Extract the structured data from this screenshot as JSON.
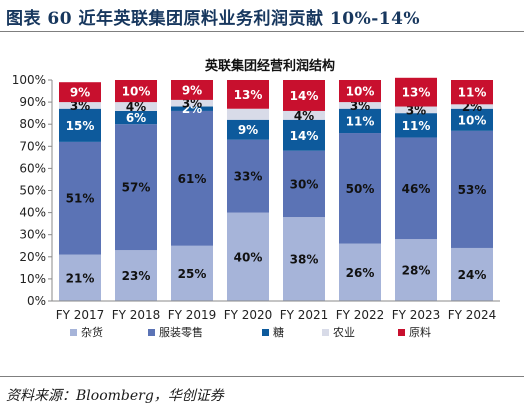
{
  "page": {
    "title": "图表 60    近年英联集团原料业务利润贡献 10%-14%",
    "source": "资料来源：Bloomberg，华创证券"
  },
  "chart_data": {
    "type": "bar",
    "stacked": true,
    "title": "英联集团经营利润结构",
    "categories": [
      "FY 2017",
      "FY 2018",
      "FY 2019",
      "FY 2020",
      "FY 2021",
      "FY 2022",
      "FY 2023",
      "FY 2024"
    ],
    "ylim": [
      0,
      100
    ],
    "yticks": [
      "0%",
      "10%",
      "20%",
      "30%",
      "40%",
      "50%",
      "60%",
      "70%",
      "80%",
      "90%",
      "100%"
    ],
    "legend_position": "bottom",
    "grid": false,
    "series": [
      {
        "name": "杂货",
        "color": "#a6b4d9",
        "label_color": "#111111",
        "values": [
          21,
          23,
          25,
          40,
          38,
          26,
          28,
          24
        ],
        "labels": [
          "21%",
          "23%",
          "25%",
          "40%",
          "38%",
          "26%",
          "28%",
          "24%"
        ]
      },
      {
        "name": "服装零售",
        "color": "#5b73b5",
        "label_color": "#111111",
        "values": [
          51,
          57,
          61,
          33,
          30,
          50,
          46,
          53
        ],
        "labels": [
          "51%",
          "57%",
          "61%",
          "33%",
          "30%",
          "50%",
          "46%",
          "53%"
        ]
      },
      {
        "name": "糖",
        "color": "#0d5a9c",
        "label_color": "#ffffff",
        "values": [
          15,
          6,
          2,
          9,
          14,
          11,
          11,
          10
        ],
        "labels": [
          "15%",
          "6%",
          "2%",
          "9%",
          "14%",
          "11%",
          "11%",
          "10%"
        ]
      },
      {
        "name": "农业",
        "color": "#d8dbe8",
        "label_color": "#111111",
        "values": [
          3,
          4,
          3,
          5,
          4,
          3,
          3,
          2
        ],
        "labels": [
          "3%",
          "4%",
          "3%",
          "",
          "4%",
          "3%",
          "3%",
          "2%"
        ]
      },
      {
        "name": "原料",
        "color": "#c8102e",
        "label_color": "#ffffff",
        "values": [
          9,
          10,
          9,
          13,
          14,
          10,
          13,
          11
        ],
        "labels": [
          "9%",
          "10%",
          "9%",
          "13%",
          "14%",
          "10%",
          "13%",
          "11%"
        ]
      }
    ]
  }
}
